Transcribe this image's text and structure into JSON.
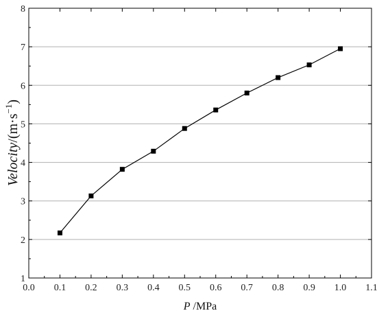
{
  "chart_data": {
    "type": "line",
    "title": "",
    "xlabel": {
      "var": "P",
      "unit": " /MPa"
    },
    "ylabel": {
      "var": "Velocity",
      "unit_open": "/(m·s",
      "unit_exp": "−1",
      "unit_close": ")"
    },
    "xlim": [
      0.0,
      1.1
    ],
    "ylim": [
      1,
      8
    ],
    "xticks": [
      "0.0",
      "0.1",
      "0.2",
      "0.3",
      "0.4",
      "0.5",
      "0.6",
      "0.7",
      "0.8",
      "0.9",
      "1.0",
      "1.1"
    ],
    "yticks": [
      "1",
      "2",
      "3",
      "4",
      "5",
      "6",
      "7",
      "8"
    ],
    "grid": "horizontal",
    "series": [
      {
        "x": [
          0.1,
          0.2,
          0.3,
          0.4,
          0.5,
          0.6,
          0.7,
          0.8,
          0.9,
          1.0
        ],
        "y": [
          2.17,
          3.13,
          3.82,
          4.29,
          4.88,
          5.36,
          5.8,
          6.2,
          6.53,
          6.95
        ]
      }
    ],
    "marker": "square",
    "colors": {
      "line": "#000000",
      "grid": "#b0b0b0"
    }
  }
}
